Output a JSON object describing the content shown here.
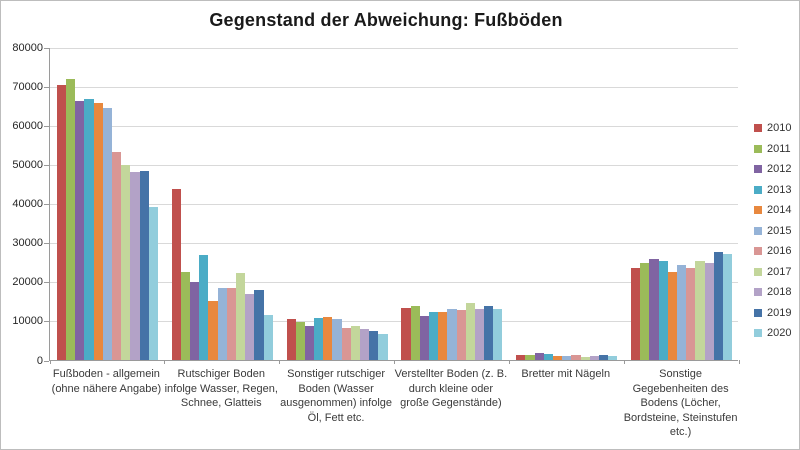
{
  "chart_data": {
    "type": "bar",
    "title": "Gegenstand der Abweichung: Fußböden",
    "xlabel": "",
    "ylabel": "",
    "ylim": [
      0,
      80000
    ],
    "ytick_step": 10000,
    "grid": "horizontal",
    "legend_position": "right",
    "categories": [
      [
        "Fußboden - allgemein",
        "(ohne nähere Angabe)"
      ],
      [
        "Rutschiger Boden",
        "infolge Wasser, Regen,",
        "Schnee, Glatteis"
      ],
      [
        "Sonstiger rutschiger",
        "Boden (Wasser",
        "ausgenommen) infolge",
        "Öl, Fett etc."
      ],
      [
        "Verstellter Boden (z. B.",
        "durch kleine oder",
        "große Gegenstände)"
      ],
      [
        "Bretter mit Nägeln"
      ],
      [
        "Sonstige",
        "Gegebenheiten des",
        "Bodens (Löcher,",
        "Bordsteine, Steinstufen",
        "etc.)"
      ]
    ],
    "series": [
      {
        "name": "2010",
        "color": "#C0504D",
        "values": [
          70300,
          43600,
          10600,
          13400,
          1300,
          23500
        ]
      },
      {
        "name": "2011",
        "color": "#9BBB59",
        "values": [
          71800,
          22600,
          9700,
          13800,
          1300,
          24800
        ]
      },
      {
        "name": "2012",
        "color": "#8064A2",
        "values": [
          66300,
          19900,
          8700,
          11200,
          1700,
          25700
        ]
      },
      {
        "name": "2013",
        "color": "#4BACC6",
        "values": [
          66700,
          26900,
          10800,
          12300,
          1500,
          25300
        ]
      },
      {
        "name": "2014",
        "color": "#E8883E",
        "values": [
          65700,
          15000,
          11000,
          12200,
          1000,
          22500
        ]
      },
      {
        "name": "2015",
        "color": "#95B3D7",
        "values": [
          64300,
          18500,
          10400,
          13000,
          900,
          24400
        ]
      },
      {
        "name": "2016",
        "color": "#D99694",
        "values": [
          53200,
          18300,
          8200,
          12900,
          1400,
          23400
        ]
      },
      {
        "name": "2017",
        "color": "#C3D69B",
        "values": [
          49900,
          22300,
          8800,
          14700,
          800,
          25300
        ]
      },
      {
        "name": "2018",
        "color": "#B3A2C7",
        "values": [
          48100,
          16900,
          7800,
          13100,
          1000,
          24900
        ]
      },
      {
        "name": "2019",
        "color": "#4573A7",
        "values": [
          48300,
          17900,
          7500,
          13900,
          1200,
          27500
        ]
      },
      {
        "name": "2020",
        "color": "#92CDDC",
        "values": [
          39200,
          11500,
          6700,
          13100,
          1000,
          27200
        ]
      }
    ]
  }
}
